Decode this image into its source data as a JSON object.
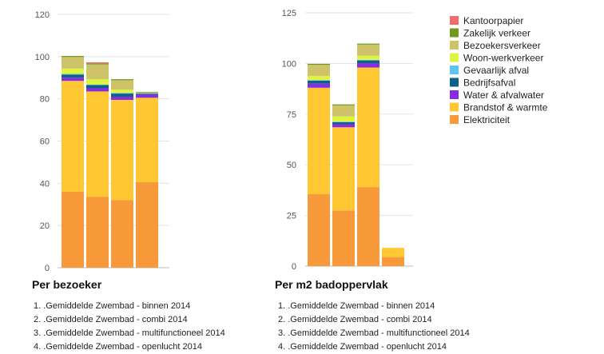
{
  "colors": {
    "Kantoorpapier": "#f46b6b",
    "Zakelijk verkeer": "#6b9a1e",
    "Bezoekersverkeer": "#cfc36a",
    "Woon-werkverkeer": "#ddf53f",
    "Gevaarlijk afval": "#5cc4f2",
    "Bedrijfsafval": "#0f5f8a",
    "Water & afvalwater": "#8a2be2",
    "Brandstof & warmte": "#ffc833",
    "Elektriciteit": "#f99a3a"
  },
  "legend": [
    "Kantoorpapier",
    "Zakelijk verkeer",
    "Bezoekersverkeer",
    "Woon-werkverkeer",
    "Gevaarlijk afval",
    "Bedrijfsafval",
    "Water & afvalwater",
    "Brandstof & warmte",
    "Elektriciteit"
  ],
  "chart_data": [
    {
      "type": "bar",
      "stacked": true,
      "title": "Per bezoeker",
      "categories": [
        "1",
        "2",
        "3",
        "4"
      ],
      "category_labels": [
        "1. .Gemiddelde Zwembad - binnen 2014",
        "2. .Gemiddelde Zwembad - combi 2014",
        "3. .Gemiddelde Zwembad - multifunctioneel 2014",
        "4. .Gemiddelde Zwembad - openlucht 2014"
      ],
      "ylim": [
        0,
        120
      ],
      "yticks": [
        0,
        20,
        40,
        60,
        80,
        100,
        120
      ],
      "grid": true,
      "series": [
        {
          "name": "Elektriciteit",
          "values": [
            36,
            33.5,
            32,
            40.5
          ]
        },
        {
          "name": "Brandstof & warmte",
          "values": [
            52.5,
            50,
            47.5,
            40
          ]
        },
        {
          "name": "Water & afvalwater",
          "values": [
            1.5,
            1.5,
            1.5,
            1.5
          ]
        },
        {
          "name": "Bedrijfsafval",
          "values": [
            1.5,
            1.5,
            1.5,
            0.5
          ]
        },
        {
          "name": "Gevaarlijk afval",
          "values": [
            0.3,
            0.3,
            0.3,
            0.1
          ]
        },
        {
          "name": "Woon-werkverkeer",
          "values": [
            2.5,
            2.5,
            1.5,
            0
          ]
        },
        {
          "name": "Bezoekersverkeer",
          "values": [
            5.5,
            7,
            4.5,
            0.4
          ]
        },
        {
          "name": "Zakelijk verkeer",
          "values": [
            0.5,
            0.5,
            0.5,
            0.3
          ]
        },
        {
          "name": "Kantoorpapier",
          "values": [
            0,
            0.5,
            0,
            0
          ]
        }
      ]
    },
    {
      "type": "bar",
      "stacked": true,
      "title": "Per m2 badoppervlak",
      "categories": [
        "1",
        "2",
        "3",
        "4"
      ],
      "category_labels": [
        "1. .Gemiddelde Zwembad - binnen 2014",
        "2. .Gemiddelde Zwembad - combi 2014",
        "3. .Gemiddelde Zwembad - multifunctioneel 2014",
        "4. .Gemiddelde Zwembad - openlucht 2014"
      ],
      "ylim": [
        0,
        125
      ],
      "yticks": [
        0,
        25,
        50,
        75,
        100,
        125
      ],
      "grid": true,
      "series": [
        {
          "name": "Elektriciteit",
          "values": [
            35.5,
            27.5,
            39,
            4.5
          ]
        },
        {
          "name": "Brandstof & warmte",
          "values": [
            52.5,
            41,
            59,
            4.5
          ]
        },
        {
          "name": "Water & afvalwater",
          "values": [
            2,
            1.5,
            2,
            0
          ]
        },
        {
          "name": "Bedrijfsafval",
          "values": [
            1.5,
            1,
            1.5,
            0
          ]
        },
        {
          "name": "Gevaarlijk afval",
          "values": [
            0.3,
            0.3,
            0.3,
            0
          ]
        },
        {
          "name": "Woon-werkverkeer",
          "values": [
            2,
            2.5,
            2,
            0
          ]
        },
        {
          "name": "Bezoekersverkeer",
          "values": [
            5.5,
            5.5,
            5.5,
            0
          ]
        },
        {
          "name": "Zakelijk verkeer",
          "values": [
            0.5,
            0.5,
            0.5,
            0
          ]
        },
        {
          "name": "Kantoorpapier",
          "values": [
            0,
            0,
            0,
            0
          ]
        }
      ]
    }
  ]
}
